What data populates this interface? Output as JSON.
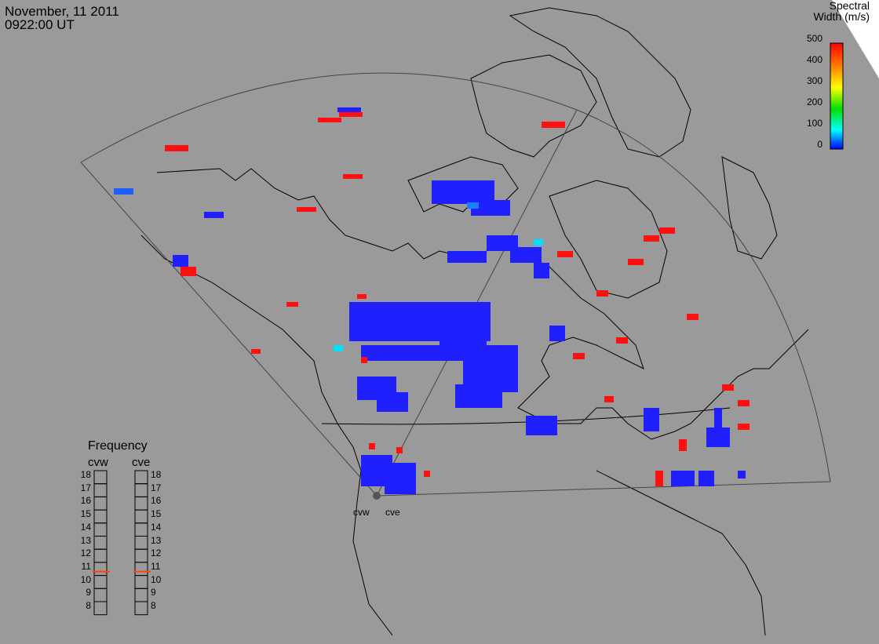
{
  "header": {
    "date": "November, 11 2011",
    "time": "0922:00 UT"
  },
  "colorbar": {
    "title_line1": "Spectral",
    "title_line2": "Width (m/s)",
    "ticks": [
      "500",
      "400",
      "300",
      "200",
      "100",
      "0"
    ],
    "colors": [
      "#ff0000",
      "#ff7f00",
      "#ffff00",
      "#00e000",
      "#00ffff",
      "#0000ff"
    ]
  },
  "frequency_panel": {
    "title": "Frequency",
    "radars": [
      {
        "name": "cvw",
        "freq_mhz": 10.8
      },
      {
        "name": "cve",
        "freq_mhz": 10.8
      }
    ],
    "ticks": [
      "18",
      "17",
      "16",
      "15",
      "14",
      "13",
      "12",
      "11",
      "10",
      "9",
      "8"
    ],
    "indicator_color": "#ff4500"
  },
  "sites": [
    {
      "name": "cvw"
    },
    {
      "name": "cve"
    }
  ]
}
